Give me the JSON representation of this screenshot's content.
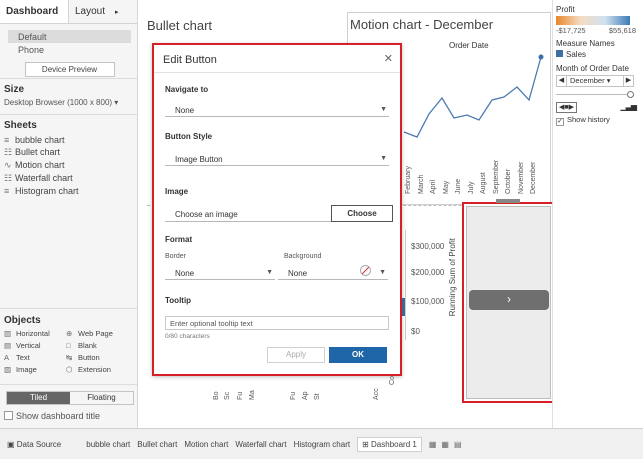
{
  "left_panel": {
    "tabs": [
      {
        "label": "Dashboard"
      },
      {
        "label": "Layout"
      }
    ],
    "devices": [
      "Default",
      "Phone"
    ],
    "device_preview_label": "Device Preview",
    "size_heading": "Size",
    "size_value": "Desktop Browser (1000 x 800) ▾",
    "sheets_heading": "Sheets",
    "sheets": [
      {
        "icon": "≡",
        "label": "bubble chart"
      },
      {
        "icon": "☷",
        "label": "Bullet chart"
      },
      {
        "icon": "∿",
        "label": "Motion chart"
      },
      {
        "icon": "☷",
        "label": "Waterfall chart"
      },
      {
        "icon": "≡",
        "label": "Histogram chart"
      }
    ],
    "objects_heading": "Objects",
    "objects": [
      {
        "icon": "▥",
        "label": "Horizontal"
      },
      {
        "icon": "⊕",
        "label": "Web Page"
      },
      {
        "icon": "▤",
        "label": "Vertical"
      },
      {
        "icon": "□",
        "label": "Blank"
      },
      {
        "icon": "A",
        "label": "Text"
      },
      {
        "icon": "↹",
        "label": "Button"
      },
      {
        "icon": "▨",
        "label": "Image"
      },
      {
        "icon": "⬡",
        "label": "Extension"
      }
    ],
    "tiled_label": "Tiled",
    "floating_label": "Floating",
    "show_title_label": "Show dashboard title"
  },
  "dashboard": {
    "bullet_title": "Bullet chart",
    "motion_title": "Motion chart - December",
    "order_date_label": "Order Date",
    "months": [
      "February",
      "March",
      "April",
      "May",
      "June",
      "July",
      "August",
      "September",
      "October",
      "November",
      "December"
    ],
    "running_sum_label": "Running Sum of Profit",
    "rs_ticks": [
      "$300,000",
      "$200,000",
      "$100,000",
      "$0"
    ],
    "bottom_labels": [
      "Bo",
      "Sc",
      "Fu",
      "Ma",
      "Fu",
      "Ap",
      "St",
      "Acc",
      "Copiers"
    ],
    "nav_button_glyph": "›"
  },
  "right_panel": {
    "profit_heading": "Profit",
    "profit_min": "-$17,725",
    "profit_max": "$55,618",
    "measure_names_heading": "Measure Names",
    "measure_item": "Sales",
    "month_heading": "Month of Order Date",
    "month_value": "December",
    "show_history_label": "Show history",
    "colors": {
      "series": "#3d6fa6"
    }
  },
  "dialog": {
    "title": "Edit Button",
    "navigate_to_label": "Navigate to",
    "navigate_to_value": "None",
    "button_style_label": "Button Style",
    "button_style_value": "Image Button",
    "image_label": "Image",
    "choose_image_placeholder": "Choose an image",
    "choose_button": "Choose",
    "format_label": "Format",
    "border_label": "Border",
    "border_value": "None",
    "background_label": "Background",
    "background_value": "None",
    "tooltip_label": "Tooltip",
    "tooltip_placeholder": "Enter optional tooltip text",
    "char_count": "0/80 characters",
    "apply_label": "Apply",
    "ok_label": "OK"
  },
  "tabbar": {
    "data_source": "Data Source",
    "tabs": [
      "bubble chart",
      "Bullet chart",
      "Motion chart",
      "Waterfall chart",
      "Histogram chart",
      "Dashboard 1"
    ]
  }
}
